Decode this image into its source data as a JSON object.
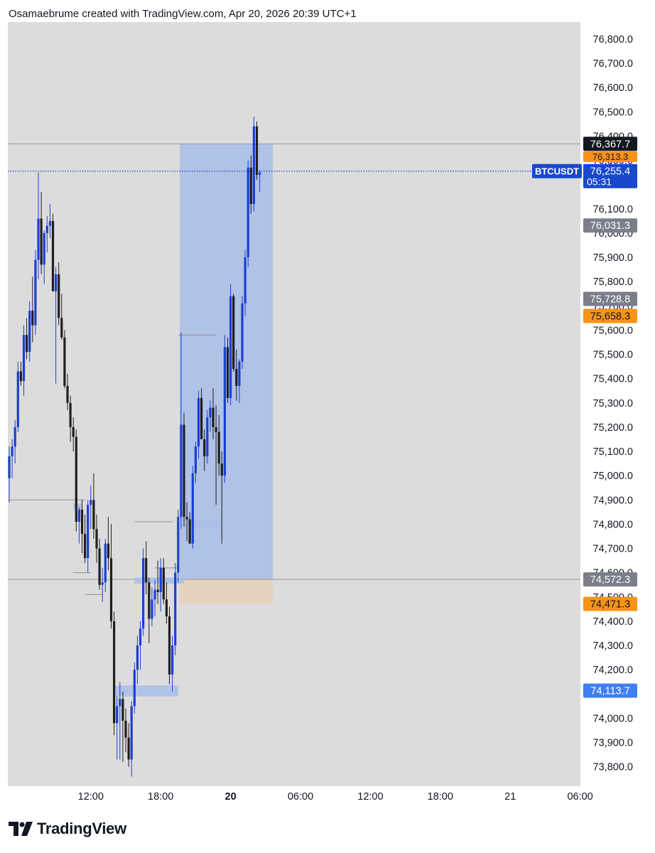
{
  "header": {
    "text": "Osamaebrume created with TradingView.com, Apr 20, 2026 20:39 UTC+1"
  },
  "footer": {
    "logo_text": "TradingView"
  },
  "colors": {
    "background": "#dcdcdc",
    "up_candle": "#1a3fd6",
    "down_candle": "#1f1f1f",
    "long_zone": "#b0c2e6",
    "stop_zone": "#e6d3bf",
    "fvg_box": "#a8bde8"
  },
  "chart_data": {
    "type": "candlestick",
    "symbol": "BTCUSDT",
    "ylim": [
      73720,
      76870
    ],
    "y_ticks": [
      76800,
      76700,
      76600,
      76500,
      76400,
      76300,
      76100,
      76000,
      75900,
      75800,
      75700,
      75600,
      75500,
      75400,
      75300,
      75200,
      75100,
      75000,
      74900,
      74800,
      74700,
      74600,
      74500,
      74400,
      74300,
      74200,
      74000,
      73900,
      73800
    ],
    "y_tick_labels": [
      "76,800.0",
      "76,700.0",
      "76,600.0",
      "76,500.0",
      "76,400.0",
      "76,300.0",
      "76,100.0",
      "76,000.0",
      "75,900.0",
      "75,800.0",
      "75,700.0",
      "75,600.0",
      "75,500.0",
      "75,400.0",
      "75,300.0",
      "75,200.0",
      "75,100.0",
      "75,000.0",
      "74,900.0",
      "74,800.0",
      "74,700.0",
      "74,600.0",
      "74,500.0",
      "74,400.0",
      "74,300.0",
      "74,200.0",
      "74,000.0",
      "73,900.0",
      "73,800.0"
    ],
    "x_ticks": [
      {
        "label": "12:00",
        "t": 28,
        "bold": false
      },
      {
        "label": "18:00",
        "t": 52,
        "bold": false
      },
      {
        "label": "20",
        "t": 76,
        "bold": true
      },
      {
        "label": "06:00",
        "t": 100,
        "bold": false
      },
      {
        "label": "12:00",
        "t": 124,
        "bold": false
      },
      {
        "label": "18:00",
        "t": 148,
        "bold": false
      },
      {
        "label": "21",
        "t": 172,
        "bold": false
      },
      {
        "label": "06:00",
        "t": 196,
        "bold": false
      }
    ],
    "candles": [
      [
        74990,
        75120,
        74890,
        75080
      ],
      [
        75080,
        75150,
        74990,
        75120
      ],
      [
        75120,
        75230,
        75050,
        75200
      ],
      [
        75200,
        75470,
        75180,
        75430
      ],
      [
        75430,
        75470,
        75370,
        75390
      ],
      [
        75390,
        75620,
        75330,
        75580
      ],
      [
        75580,
        75650,
        75480,
        75510
      ],
      [
        75510,
        75720,
        75470,
        75680
      ],
      [
        75680,
        75820,
        75550,
        75620
      ],
      [
        75620,
        75930,
        75580,
        75890
      ],
      [
        75890,
        76250,
        75810,
        76060
      ],
      [
        76060,
        76170,
        75830,
        75870
      ],
      [
        75870,
        76010,
        75790,
        76000
      ],
      [
        76000,
        76070,
        75920,
        76030
      ],
      [
        76030,
        76120,
        75980,
        76050
      ],
      [
        76050,
        76080,
        75780,
        75760
      ],
      [
        75760,
        75860,
        75380,
        75830
      ],
      [
        75830,
        75880,
        75620,
        75650
      ],
      [
        75650,
        75750,
        75560,
        75570
      ],
      [
        75570,
        75600,
        75360,
        75370
      ],
      [
        75370,
        75420,
        75270,
        75300
      ],
      [
        75300,
        75330,
        75140,
        75200
      ],
      [
        75200,
        75240,
        75100,
        75160
      ],
      [
        75160,
        75190,
        74770,
        74810
      ],
      [
        74810,
        74870,
        74720,
        74860
      ],
      [
        74860,
        74900,
        74680,
        74760
      ],
      [
        74760,
        74840,
        74640,
        74660
      ],
      [
        74660,
        74900,
        74600,
        74880
      ],
      [
        74880,
        74960,
        74780,
        74900
      ],
      [
        74900,
        75010,
        74740,
        74780
      ],
      [
        74780,
        74840,
        74640,
        74700
      ],
      [
        74700,
        74740,
        74530,
        74550
      ],
      [
        74550,
        74620,
        74480,
        74560
      ],
      [
        74560,
        74740,
        74520,
        74720
      ],
      [
        74720,
        74830,
        74610,
        74660
      ],
      [
        74660,
        74800,
        74370,
        74400
      ],
      [
        74400,
        74440,
        73930,
        73980
      ],
      [
        73980,
        74090,
        73830,
        74050
      ],
      [
        74050,
        74150,
        73830,
        74080
      ],
      [
        74080,
        74110,
        73820,
        73990
      ],
      [
        73990,
        74040,
        73860,
        73920
      ],
      [
        73920,
        73980,
        73800,
        73830
      ],
      [
        73830,
        74070,
        73760,
        74050
      ],
      [
        74050,
        74230,
        74020,
        74200
      ],
      [
        74200,
        74340,
        74140,
        74300
      ],
      [
        74300,
        74400,
        74200,
        74370
      ],
      [
        74370,
        74700,
        74340,
        74660
      ],
      [
        74660,
        74730,
        74510,
        74560
      ],
      [
        74560,
        74580,
        74310,
        74410
      ],
      [
        74410,
        74540,
        74380,
        74490
      ],
      [
        74490,
        74570,
        74420,
        74530
      ],
      [
        74530,
        74650,
        74470,
        74520
      ],
      [
        74520,
        74660,
        74440,
        74620
      ],
      [
        74620,
        74660,
        74470,
        74490
      ],
      [
        74490,
        74560,
        74390,
        74420
      ],
      [
        74420,
        74460,
        74140,
        74180
      ],
      [
        74180,
        74340,
        74110,
        74300
      ],
      [
        74300,
        74640,
        74260,
        74600
      ],
      [
        74600,
        74860,
        74560,
        74830
      ],
      [
        74830,
        75590,
        74780,
        75210
      ],
      [
        75210,
        75260,
        74790,
        74830
      ],
      [
        74830,
        74890,
        74730,
        74820
      ],
      [
        74820,
        74850,
        74720,
        74720
      ],
      [
        74720,
        75040,
        74700,
        75010
      ],
      [
        75010,
        75140,
        74970,
        75120
      ],
      [
        75120,
        75350,
        75070,
        75320
      ],
      [
        75320,
        75360,
        75160,
        75150
      ],
      [
        75150,
        75190,
        75020,
        75080
      ],
      [
        75080,
        75270,
        75050,
        75240
      ],
      [
        75240,
        75310,
        75180,
        75280
      ],
      [
        75280,
        75360,
        75150,
        75200
      ],
      [
        75200,
        75290,
        74880,
        75180
      ],
      [
        75180,
        75250,
        75000,
        75050
      ],
      [
        75050,
        75100,
        74720,
        75000
      ],
      [
        75000,
        75580,
        74970,
        75530
      ],
      [
        75530,
        75570,
        75300,
        75320
      ],
      [
        75320,
        75790,
        75290,
        75740
      ],
      [
        75740,
        75750,
        75430,
        75440
      ],
      [
        75440,
        75520,
        75310,
        75370
      ],
      [
        75370,
        75480,
        75300,
        75470
      ],
      [
        75470,
        75740,
        75440,
        75710
      ],
      [
        75710,
        75930,
        75660,
        75900
      ],
      [
        75900,
        76300,
        75860,
        76270
      ],
      [
        76270,
        76320,
        76080,
        76120
      ],
      [
        76120,
        76480,
        76090,
        76440
      ],
      [
        76440,
        76460,
        76220,
        76240
      ],
      [
        76240,
        76260,
        76170,
        76250
      ]
    ],
    "fvg_boxes": [
      {
        "i1": 60,
        "i2": 73,
        "y1": 74785,
        "y2": 74815
      },
      {
        "i1": 36,
        "i2": 58,
        "y1": 74090,
        "y2": 74135
      },
      {
        "i1": 43,
        "i2": 60,
        "y1": 74555,
        "y2": 74580
      },
      {
        "i1": 22,
        "i2": 25,
        "y1": 74865,
        "y2": 74885
      }
    ],
    "level_lines": [
      {
        "i1": 0,
        "i2": 26,
        "y": 74900
      },
      {
        "i1": 58,
        "i2": 71,
        "y": 75580
      },
      {
        "i1": 43,
        "i2": 56,
        "y": 74810
      },
      {
        "i1": 50,
        "i2": 58,
        "y": 74620
      },
      {
        "i1": 26,
        "i2": 32,
        "y": 74510
      },
      {
        "i1": 22,
        "i2": 28,
        "y": 74600
      }
    ],
    "position": {
      "type": "long",
      "start_index": 59,
      "end_index": 90,
      "entry": 74572.3,
      "target": 76367.7,
      "stop": 74471.3
    },
    "horizontal_lines": [
      {
        "y": 76367.7,
        "style": "solid",
        "color": "#9a9a9a"
      },
      {
        "y": 76255.4,
        "style": "dotted",
        "color": "#1a3fd6"
      },
      {
        "y": 74572.3,
        "style": "solid",
        "color": "#9a9a9a"
      }
    ],
    "price_labels": [
      {
        "text": "76,367.7",
        "y": 76367.7,
        "bg": "#131722",
        "fg": "#ffffff"
      },
      {
        "text": "76,255.4",
        "sub": "05:31",
        "y": 76255.4,
        "bg": "#1848cc",
        "fg": "#ffffff"
      },
      {
        "text": "76,031.3",
        "y": 76031.3,
        "bg": "#7b7e8a",
        "fg": "#ffffff"
      },
      {
        "text": "75,728.8",
        "y": 75728.8,
        "bg": "#7b7e8a",
        "fg": "#ffffff"
      },
      {
        "text": "75,658.3",
        "y": 75658.3,
        "bg": "#f7931a",
        "fg": "#131722"
      },
      {
        "text": "74,572.3",
        "y": 74572.3,
        "bg": "#7b7e8a",
        "fg": "#ffffff"
      },
      {
        "text": "74,471.3",
        "y": 74471.3,
        "bg": "#f7931a",
        "fg": "#131722"
      },
      {
        "text": "74,113.7",
        "y": 74113.7,
        "bg": "#3f7ff0",
        "fg": "#ffffff"
      }
    ],
    "hidden_tick_labels": [
      {
        "text": "76,313.3",
        "y": 76313.3,
        "bg": "#f7931a"
      }
    ]
  }
}
